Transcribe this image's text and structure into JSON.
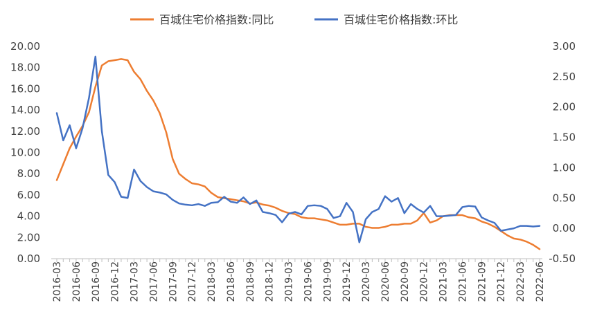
{
  "chart_data": {
    "type": "line",
    "legend_position": "top",
    "grid": false,
    "y_left": {
      "min": 0,
      "max": 20,
      "step": 2,
      "decimals": 2
    },
    "y_right": {
      "min": -0.5,
      "max": 3.0,
      "step": 0.5,
      "decimals": 2
    },
    "x": [
      "2016-03",
      "2016-04",
      "2016-05",
      "2016-06",
      "2016-07",
      "2016-08",
      "2016-09",
      "2016-10",
      "2016-11",
      "2016-12",
      "2017-01",
      "2017-02",
      "2017-03",
      "2017-04",
      "2017-05",
      "2017-06",
      "2017-07",
      "2017-08",
      "2017-09",
      "2017-10",
      "2017-11",
      "2017-12",
      "2018-01",
      "2018-02",
      "2018-03",
      "2018-04",
      "2018-05",
      "2018-06",
      "2018-07",
      "2018-08",
      "2018-09",
      "2018-10",
      "2018-11",
      "2018-12",
      "2019-01",
      "2019-02",
      "2019-03",
      "2019-04",
      "2019-05",
      "2019-06",
      "2019-07",
      "2019-08",
      "2019-09",
      "2019-10",
      "2019-11",
      "2019-12",
      "2020-01",
      "2020-02",
      "2020-03",
      "2020-04",
      "2020-05",
      "2020-06",
      "2020-07",
      "2020-08",
      "2020-09",
      "2020-10",
      "2020-11",
      "2020-12",
      "2021-01",
      "2021-02",
      "2021-03",
      "2021-04",
      "2021-05",
      "2021-06",
      "2021-07",
      "2021-08",
      "2021-09",
      "2021-10",
      "2021-11",
      "2021-12",
      "2022-01",
      "2022-02",
      "2022-03",
      "2022-04",
      "2022-05",
      "2022-06"
    ],
    "x_tick_labels": [
      "2016-03",
      "2016-06",
      "2016-09",
      "2016-12",
      "2017-03",
      "2017-06",
      "2017-09",
      "2017-12",
      "2018-03",
      "2018-06",
      "2018-09",
      "2018-12",
      "2019-03",
      "2019-06",
      "2019-09",
      "2019-12",
      "2020-03",
      "2020-06",
      "2020-09",
      "2020-12",
      "2021-03",
      "2021-06",
      "2021-09",
      "2021-12",
      "2022-03",
      "2022-06"
    ],
    "series": [
      {
        "name": "百城住宅价格指数:同比",
        "axis": "left",
        "color": "#ED7D31",
        "values": [
          7.4,
          8.9,
          10.4,
          11.5,
          12.5,
          13.8,
          16.2,
          18.2,
          18.6,
          18.7,
          18.8,
          18.7,
          17.6,
          16.9,
          15.8,
          14.9,
          13.7,
          11.9,
          9.4,
          8.0,
          7.5,
          7.1,
          7.0,
          6.8,
          6.2,
          5.8,
          5.7,
          5.6,
          5.5,
          5.4,
          5.2,
          5.3,
          5.1,
          5.0,
          4.8,
          4.5,
          4.3,
          4.2,
          3.9,
          3.8,
          3.8,
          3.7,
          3.6,
          3.4,
          3.2,
          3.2,
          3.3,
          3.3,
          3.0,
          2.9,
          2.9,
          3.0,
          3.2,
          3.2,
          3.3,
          3.3,
          3.6,
          4.3,
          3.4,
          3.6,
          4.0,
          4.1,
          4.1,
          4.1,
          3.9,
          3.8,
          3.5,
          3.3,
          3.0,
          2.6,
          2.2,
          1.9,
          1.8,
          1.6,
          1.3,
          0.9
        ]
      },
      {
        "name": "百城住宅价格指数:环比",
        "axis": "right",
        "color": "#4472C4",
        "values": [
          1.9,
          1.45,
          1.7,
          1.32,
          1.65,
          2.15,
          2.83,
          1.6,
          0.88,
          0.76,
          0.52,
          0.5,
          0.97,
          0.78,
          0.68,
          0.61,
          0.59,
          0.56,
          0.47,
          0.41,
          0.39,
          0.38,
          0.4,
          0.37,
          0.42,
          0.43,
          0.52,
          0.44,
          0.42,
          0.51,
          0.4,
          0.46,
          0.27,
          0.25,
          0.22,
          0.1,
          0.24,
          0.27,
          0.23,
          0.37,
          0.38,
          0.37,
          0.32,
          0.17,
          0.2,
          0.42,
          0.27,
          -0.23,
          0.15,
          0.27,
          0.32,
          0.53,
          0.44,
          0.5,
          0.25,
          0.4,
          0.32,
          0.26,
          0.37,
          0.2,
          0.2,
          0.21,
          0.22,
          0.35,
          0.37,
          0.36,
          0.18,
          0.13,
          0.09,
          -0.04,
          -0.02,
          0.0,
          0.04,
          0.04,
          0.03,
          0.04
        ]
      }
    ]
  }
}
